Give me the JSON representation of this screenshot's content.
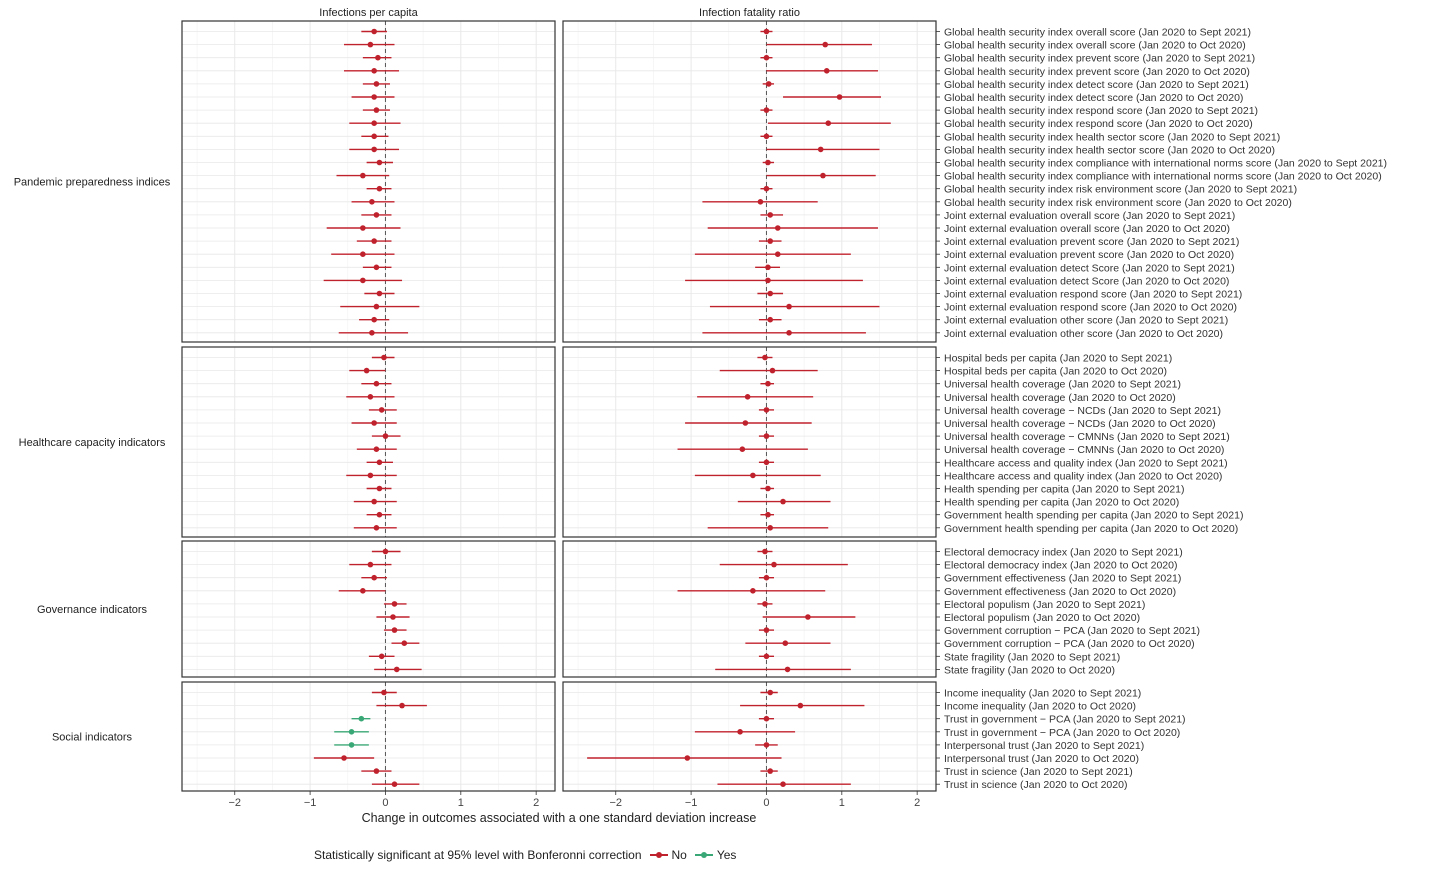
{
  "chart_data": {
    "type": "scatter",
    "subtype": "forest-plot (point estimate with error bars)",
    "xlabel": "Change in outcomes associated with a one standard deviation increase",
    "xticks": [
      -2,
      -1,
      0,
      1,
      2
    ],
    "xlim": [
      -2.7,
      2.25
    ],
    "reference_line_x": 0,
    "grid": true,
    "colors": {
      "No": "#c0222d",
      "Yes": "#3aa876"
    },
    "panels": [
      "Infections per capita",
      "Infection fatality ratio"
    ],
    "legend": {
      "title": "Statistically significant at 95% level with Bonferonni correction",
      "entries": [
        "No",
        "Yes"
      ],
      "placement": "bottom"
    },
    "groups": [
      {
        "name": "Pandemic preparedness indices",
        "items": [
          {
            "label": "Global health security index overall score (Jan 2020 to Sept 2021)",
            "inf": [
              -0.15,
              -0.32,
              0.02,
              "No"
            ],
            "ifr": [
              0.0,
              -0.08,
              0.08,
              "No"
            ]
          },
          {
            "label": "Global health security index overall score (Jan 2020 to Oct 2020)",
            "inf": [
              -0.2,
              -0.55,
              0.12,
              "No"
            ],
            "ifr": [
              0.78,
              0.0,
              1.4,
              "No"
            ]
          },
          {
            "label": "Global health security index prevent score (Jan 2020 to Sept 2021)",
            "inf": [
              -0.1,
              -0.3,
              0.08,
              "No"
            ],
            "ifr": [
              0.0,
              -0.08,
              0.08,
              "No"
            ]
          },
          {
            "label": "Global health security index prevent score (Jan 2020 to Oct 2020)",
            "inf": [
              -0.15,
              -0.55,
              0.18,
              "No"
            ],
            "ifr": [
              0.8,
              0.0,
              1.48,
              "No"
            ]
          },
          {
            "label": "Global health security index detect score (Jan 2020 to Sept 2021)",
            "inf": [
              -0.12,
              -0.3,
              0.06,
              "No"
            ],
            "ifr": [
              0.03,
              -0.05,
              0.1,
              "No"
            ]
          },
          {
            "label": "Global health security index detect score (Jan 2020 to Oct 2020)",
            "inf": [
              -0.15,
              -0.45,
              0.12,
              "No"
            ],
            "ifr": [
              0.97,
              0.22,
              1.52,
              "No"
            ]
          },
          {
            "label": "Global health security index respond score (Jan 2020 to Sept 2021)",
            "inf": [
              -0.12,
              -0.3,
              0.06,
              "No"
            ],
            "ifr": [
              0.0,
              -0.08,
              0.08,
              "No"
            ]
          },
          {
            "label": "Global health security index respond score (Jan 2020 to Oct 2020)",
            "inf": [
              -0.15,
              -0.48,
              0.2,
              "No"
            ],
            "ifr": [
              0.82,
              0.02,
              1.65,
              "No"
            ]
          },
          {
            "label": "Global health security index health sector score (Jan 2020 to Sept 2021)",
            "inf": [
              -0.15,
              -0.32,
              0.04,
              "No"
            ],
            "ifr": [
              0.0,
              -0.08,
              0.08,
              "No"
            ]
          },
          {
            "label": "Global health security index health sector score (Jan 2020 to Oct 2020)",
            "inf": [
              -0.15,
              -0.48,
              0.18,
              "No"
            ],
            "ifr": [
              0.72,
              0.0,
              1.5,
              "No"
            ]
          },
          {
            "label": "Global health security index compliance with international norms score (Jan 2020 to Sept 2021)",
            "inf": [
              -0.08,
              -0.25,
              0.1,
              "No"
            ],
            "ifr": [
              0.02,
              -0.05,
              0.1,
              "No"
            ]
          },
          {
            "label": "Global health security index compliance with international norms score (Jan 2020 to Oct 2020)",
            "inf": [
              -0.3,
              -0.65,
              0.05,
              "No"
            ],
            "ifr": [
              0.75,
              0.0,
              1.45,
              "No"
            ]
          },
          {
            "label": "Global health security index risk environment score (Jan 2020 to Sept 2021)",
            "inf": [
              -0.08,
              -0.25,
              0.08,
              "No"
            ],
            "ifr": [
              0.0,
              -0.08,
              0.08,
              "No"
            ]
          },
          {
            "label": "Global health security index risk environment score (Jan 2020 to Oct 2020)",
            "inf": [
              -0.18,
              -0.45,
              0.12,
              "No"
            ],
            "ifr": [
              -0.08,
              -0.85,
              0.68,
              "No"
            ]
          },
          {
            "label": "Joint external evaluation overall score (Jan 2020 to Sept 2021)",
            "inf": [
              -0.12,
              -0.32,
              0.08,
              "No"
            ],
            "ifr": [
              0.05,
              -0.08,
              0.22,
              "No"
            ]
          },
          {
            "label": "Joint external evaluation overall score (Jan 2020 to Oct 2020)",
            "inf": [
              -0.3,
              -0.78,
              0.2,
              "No"
            ],
            "ifr": [
              0.15,
              -0.78,
              1.48,
              "No"
            ]
          },
          {
            "label": "Joint external evaluation prevent score (Jan 2020 to Sept 2021)",
            "inf": [
              -0.15,
              -0.38,
              0.08,
              "No"
            ],
            "ifr": [
              0.05,
              -0.1,
              0.2,
              "No"
            ]
          },
          {
            "label": "Joint external evaluation prevent score (Jan 2020 to Oct 2020)",
            "inf": [
              -0.3,
              -0.72,
              0.12,
              "No"
            ],
            "ifr": [
              0.15,
              -0.95,
              1.12,
              "No"
            ]
          },
          {
            "label": "Joint external evaluation detect Score (Jan 2020 to Sept 2021)",
            "inf": [
              -0.12,
              -0.3,
              0.08,
              "No"
            ],
            "ifr": [
              0.02,
              -0.15,
              0.18,
              "No"
            ]
          },
          {
            "label": "Joint external evaluation detect Score (Jan 2020 to Oct 2020)",
            "inf": [
              -0.3,
              -0.82,
              0.22,
              "No"
            ],
            "ifr": [
              0.02,
              -1.08,
              1.28,
              "No"
            ]
          },
          {
            "label": "Joint external evaluation respond score (Jan 2020 to Sept 2021)",
            "inf": [
              -0.08,
              -0.28,
              0.12,
              "No"
            ],
            "ifr": [
              0.05,
              -0.12,
              0.22,
              "No"
            ]
          },
          {
            "label": "Joint external evaluation respond score (Jan 2020 to Oct 2020)",
            "inf": [
              -0.12,
              -0.6,
              0.45,
              "No"
            ],
            "ifr": [
              0.3,
              -0.75,
              1.5,
              "No"
            ]
          },
          {
            "label": "Joint external evaluation other score (Jan 2020 to Sept 2021)",
            "inf": [
              -0.15,
              -0.35,
              0.05,
              "No"
            ],
            "ifr": [
              0.05,
              -0.1,
              0.2,
              "No"
            ]
          },
          {
            "label": "Joint external evaluation other score (Jan 2020 to Oct 2020)",
            "inf": [
              -0.18,
              -0.62,
              0.3,
              "No"
            ],
            "ifr": [
              0.3,
              -0.85,
              1.32,
              "No"
            ]
          }
        ]
      },
      {
        "name": "Healthcare capacity indicators",
        "items": [
          {
            "label": "Hospital beds per capita (Jan 2020 to Sept 2021)",
            "inf": [
              -0.02,
              -0.18,
              0.12,
              "No"
            ],
            "ifr": [
              -0.02,
              -0.12,
              0.08,
              "No"
            ]
          },
          {
            "label": "Hospital beds per capita (Jan 2020 to Oct 2020)",
            "inf": [
              -0.25,
              -0.48,
              0.0,
              "No"
            ],
            "ifr": [
              0.08,
              -0.62,
              0.68,
              "No"
            ]
          },
          {
            "label": "Universal health coverage (Jan 2020 to Sept 2021)",
            "inf": [
              -0.12,
              -0.32,
              0.08,
              "No"
            ],
            "ifr": [
              0.02,
              -0.08,
              0.1,
              "No"
            ]
          },
          {
            "label": "Universal health coverage (Jan 2020 to Oct 2020)",
            "inf": [
              -0.2,
              -0.52,
              0.12,
              "No"
            ],
            "ifr": [
              -0.25,
              -0.92,
              0.62,
              "No"
            ]
          },
          {
            "label": "Universal health coverage − NCDs (Jan 2020 to Sept 2021)",
            "inf": [
              -0.05,
              -0.22,
              0.15,
              "No"
            ],
            "ifr": [
              0.0,
              -0.1,
              0.1,
              "No"
            ]
          },
          {
            "label": "Universal health coverage − NCDs (Jan 2020 to Oct 2020)",
            "inf": [
              -0.15,
              -0.45,
              0.15,
              "No"
            ],
            "ifr": [
              -0.28,
              -1.08,
              0.6,
              "No"
            ]
          },
          {
            "label": "Universal health coverage − CMNNs (Jan 2020 to Sept 2021)",
            "inf": [
              0.0,
              -0.18,
              0.2,
              "No"
            ],
            "ifr": [
              0.0,
              -0.1,
              0.1,
              "No"
            ]
          },
          {
            "label": "Universal health coverage − CMNNs (Jan 2020 to Oct 2020)",
            "inf": [
              -0.12,
              -0.38,
              0.15,
              "No"
            ],
            "ifr": [
              -0.32,
              -1.18,
              0.55,
              "No"
            ]
          },
          {
            "label": "Healthcare access and quality index (Jan 2020 to Sept 2021)",
            "inf": [
              -0.08,
              -0.25,
              0.1,
              "No"
            ],
            "ifr": [
              0.0,
              -0.1,
              0.1,
              "No"
            ]
          },
          {
            "label": "Healthcare access and quality index (Jan 2020 to Oct 2020)",
            "inf": [
              -0.2,
              -0.52,
              0.15,
              "No"
            ],
            "ifr": [
              -0.18,
              -0.95,
              0.72,
              "No"
            ]
          },
          {
            "label": "Health spending per capita (Jan 2020 to Sept 2021)",
            "inf": [
              -0.08,
              -0.25,
              0.08,
              "No"
            ],
            "ifr": [
              0.02,
              -0.08,
              0.1,
              "No"
            ]
          },
          {
            "label": "Health spending per capita (Jan 2020 to Oct 2020)",
            "inf": [
              -0.15,
              -0.42,
              0.15,
              "No"
            ],
            "ifr": [
              0.22,
              -0.38,
              0.85,
              "No"
            ]
          },
          {
            "label": "Government health spending per capita (Jan 2020 to Sept 2021)",
            "inf": [
              -0.08,
              -0.25,
              0.08,
              "No"
            ],
            "ifr": [
              0.02,
              -0.08,
              0.1,
              "No"
            ]
          },
          {
            "label": "Government health spending per capita (Jan 2020 to Oct 2020)",
            "inf": [
              -0.12,
              -0.42,
              0.15,
              "No"
            ],
            "ifr": [
              0.05,
              -0.78,
              0.82,
              "No"
            ]
          }
        ]
      },
      {
        "name": "Governance indicators",
        "items": [
          {
            "label": "Electoral democracy index (Jan 2020 to Sept 2021)",
            "inf": [
              0.0,
              -0.18,
              0.2,
              "No"
            ],
            "ifr": [
              -0.02,
              -0.12,
              0.08,
              "No"
            ]
          },
          {
            "label": "Electoral democracy index (Jan 2020 to Oct 2020)",
            "inf": [
              -0.2,
              -0.48,
              0.08,
              "No"
            ],
            "ifr": [
              0.1,
              -0.62,
              1.08,
              "No"
            ]
          },
          {
            "label": "Government effectiveness (Jan 2020 to Sept 2021)",
            "inf": [
              -0.15,
              -0.32,
              0.02,
              "No"
            ],
            "ifr": [
              0.0,
              -0.1,
              0.1,
              "No"
            ]
          },
          {
            "label": "Government effectiveness (Jan 2020 to Oct 2020)",
            "inf": [
              -0.3,
              -0.62,
              0.0,
              "No"
            ],
            "ifr": [
              -0.18,
              -1.18,
              0.78,
              "No"
            ]
          },
          {
            "label": "Electoral populism (Jan 2020 to Sept 2021)",
            "inf": [
              0.12,
              -0.02,
              0.28,
              "No"
            ],
            "ifr": [
              -0.02,
              -0.12,
              0.08,
              "No"
            ]
          },
          {
            "label": "Electoral populism (Jan 2020 to Oct 2020)",
            "inf": [
              0.1,
              -0.12,
              0.32,
              "No"
            ],
            "ifr": [
              0.55,
              -0.05,
              1.18,
              "No"
            ]
          },
          {
            "label": "Government corruption − PCA (Jan 2020 to Sept 2021)",
            "inf": [
              0.12,
              -0.02,
              0.28,
              "No"
            ],
            "ifr": [
              0.0,
              -0.1,
              0.1,
              "No"
            ]
          },
          {
            "label": "Government corruption − PCA (Jan 2020 to Oct 2020)",
            "inf": [
              0.25,
              0.08,
              0.45,
              "No"
            ],
            "ifr": [
              0.25,
              -0.28,
              0.85,
              "No"
            ]
          },
          {
            "label": "State fragility (Jan 2020 to Sept 2021)",
            "inf": [
              -0.05,
              -0.22,
              0.12,
              "No"
            ],
            "ifr": [
              0.0,
              -0.1,
              0.1,
              "No"
            ]
          },
          {
            "label": "State fragility (Jan 2020 to Oct 2020)",
            "inf": [
              0.15,
              -0.15,
              0.48,
              "No"
            ],
            "ifr": [
              0.28,
              -0.68,
              1.12,
              "No"
            ]
          }
        ]
      },
      {
        "name": "Social indicators",
        "items": [
          {
            "label": "Income inequality (Jan 2020 to Sept 2021)",
            "inf": [
              -0.02,
              -0.18,
              0.15,
              "No"
            ],
            "ifr": [
              0.05,
              -0.08,
              0.15,
              "No"
            ]
          },
          {
            "label": "Income inequality (Jan 2020 to Oct 2020)",
            "inf": [
              0.22,
              -0.12,
              0.55,
              "No"
            ],
            "ifr": [
              0.45,
              -0.35,
              1.3,
              "No"
            ]
          },
          {
            "label": "Trust in government − PCA (Jan 2020 to Sept 2021)",
            "inf": [
              -0.32,
              -0.45,
              -0.2,
              "Yes"
            ],
            "ifr": [
              0.0,
              -0.1,
              0.1,
              "No"
            ]
          },
          {
            "label": "Trust in government − PCA (Jan 2020 to Oct 2020)",
            "inf": [
              -0.45,
              -0.68,
              -0.22,
              "Yes"
            ],
            "ifr": [
              -0.35,
              -0.95,
              0.38,
              "No"
            ]
          },
          {
            "label": "Interpersonal trust (Jan 2020 to Sept 2021)",
            "inf": [
              -0.45,
              -0.68,
              -0.22,
              "Yes"
            ],
            "ifr": [
              0.0,
              -0.15,
              0.15,
              "No"
            ]
          },
          {
            "label": "Interpersonal trust (Jan 2020 to Oct 2020)",
            "inf": [
              -0.55,
              -0.95,
              -0.15,
              "No"
            ],
            "ifr": [
              -1.05,
              -2.38,
              0.2,
              "No"
            ]
          },
          {
            "label": "Trust in science (Jan 2020 to Sept 2021)",
            "inf": [
              -0.12,
              -0.32,
              0.08,
              "No"
            ],
            "ifr": [
              0.05,
              -0.08,
              0.15,
              "No"
            ]
          },
          {
            "label": "Trust in science (Jan 2020 to Oct 2020)",
            "inf": [
              0.12,
              -0.18,
              0.45,
              "No"
            ],
            "ifr": [
              0.22,
              -0.65,
              1.12,
              "No"
            ]
          }
        ]
      }
    ]
  }
}
